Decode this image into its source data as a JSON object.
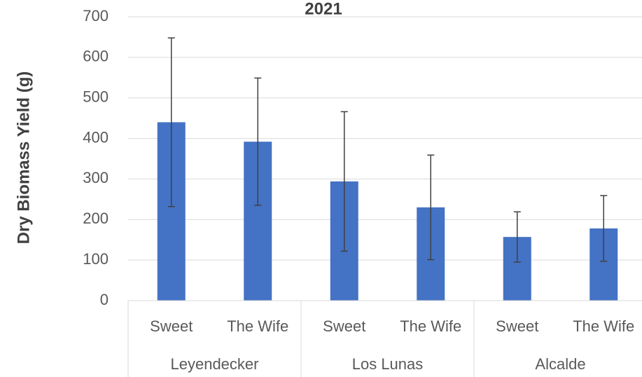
{
  "chart_data": {
    "type": "bar",
    "title": "2021",
    "y_label": "Dry Biomass Yield (g)",
    "categories": [
      "Sweet",
      "The Wife",
      "Sweet",
      "The Wife",
      "Sweet",
      "The Wife"
    ],
    "groups": [
      "Leyendecker",
      "Los Lunas",
      "Alcalde"
    ],
    "values": [
      440,
      392,
      294,
      230,
      157,
      178
    ],
    "errors": [
      208,
      157,
      172,
      129,
      62,
      81
    ],
    "color": "#4472c4",
    "ylim": [
      0,
      700
    ],
    "yticks": [
      0,
      100,
      200,
      300,
      400,
      500,
      600,
      700
    ],
    "grid": true
  }
}
